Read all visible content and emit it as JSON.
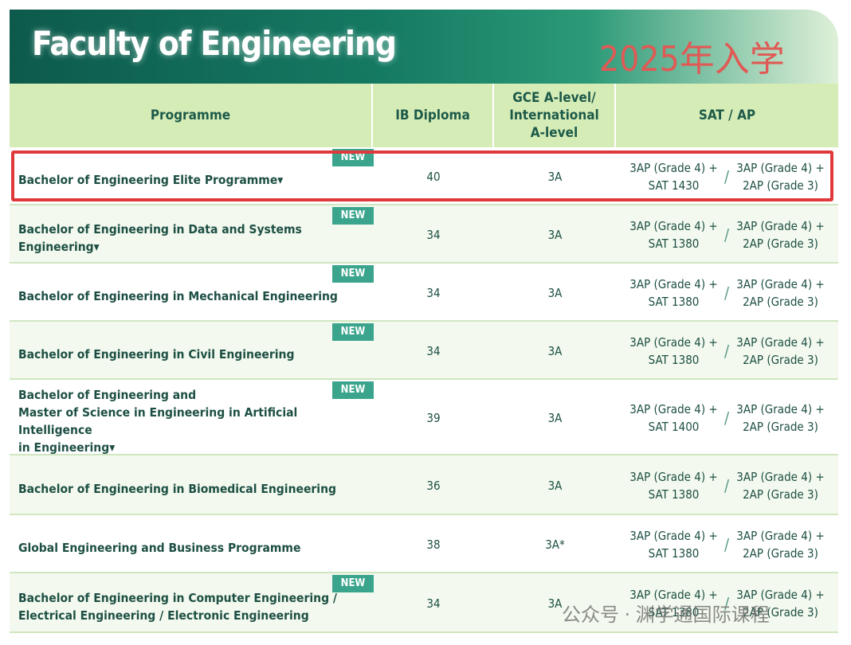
{
  "header": {
    "title": "Faculty of Engineering",
    "intake": "2025年入学"
  },
  "table": {
    "columns": [
      [
        "Programme"
      ],
      [
        "IB Diploma"
      ],
      [
        "GCE A-level/",
        "International",
        "A-level"
      ],
      [
        "SAT / AP"
      ]
    ],
    "rows": [
      {
        "programme": [
          "Bachelor of Engineering Elite Programme▾"
        ],
        "badge": "NEW",
        "ib": "40",
        "gce": "3A",
        "sat": [
          "3AP (Grade 4) +",
          "SAT 1430"
        ],
        "ap": [
          "3AP (Grade 4) +",
          "2AP (Grade 3)"
        ]
      },
      {
        "programme": [
          "Bachelor of Engineering in Data and Systems Engineering▾"
        ],
        "badge": "NEW",
        "ib": "34",
        "gce": "3A",
        "sat": [
          "3AP (Grade 4) +",
          "SAT 1380"
        ],
        "ap": [
          "3AP (Grade 4) +",
          "2AP (Grade 3)"
        ]
      },
      {
        "programme": [
          "Bachelor of Engineering in Mechanical Engineering"
        ],
        "badge": "NEW",
        "ib": "34",
        "gce": "3A",
        "sat": [
          "3AP (Grade 4) +",
          "SAT 1380"
        ],
        "ap": [
          "3AP (Grade 4) +",
          "2AP (Grade 3)"
        ]
      },
      {
        "programme": [
          "Bachelor of Engineering in Civil Engineering"
        ],
        "badge": "NEW",
        "ib": "34",
        "gce": "3A",
        "sat": [
          "3AP (Grade 4) +",
          "SAT 1380"
        ],
        "ap": [
          "3AP (Grade 4) +",
          "2AP (Grade 3)"
        ]
      },
      {
        "programme": [
          "Bachelor of Engineering and",
          "Master of Science in Engineering in Artificial Intelligence",
          "in Engineering▾"
        ],
        "badge": "NEW",
        "ib": "39",
        "gce": "3A",
        "sat": [
          "3AP (Grade 4) +",
          "SAT 1400"
        ],
        "ap": [
          "3AP (Grade 4) +",
          "2AP (Grade 3)"
        ]
      },
      {
        "programme": [
          "Bachelor of Engineering in Biomedical Engineering"
        ],
        "ib": "36",
        "gce": "3A",
        "sat": [
          "3AP (Grade 4) +",
          "SAT 1380"
        ],
        "ap": [
          "3AP (Grade 4) +",
          "2AP (Grade 3)"
        ]
      },
      {
        "programme": [
          "Global Engineering and Business Programme"
        ],
        "ib": "38",
        "gce": "3A*",
        "sat": [
          "3AP (Grade 4) +",
          "SAT 1380"
        ],
        "ap": [
          "3AP (Grade 4) +",
          "2AP (Grade 3)"
        ]
      },
      {
        "programme": [
          "Bachelor of Engineering in Computer Engineering /",
          "Electrical Engineering / Electronic Engineering"
        ],
        "badge": "NEW",
        "ib": "34",
        "gce": "3A",
        "sat": [
          "3AP (Grade 4) +",
          "SAT 1380"
        ],
        "ap": [
          "3AP (Grade 4) +",
          "2AP (Grade 3)"
        ]
      }
    ]
  },
  "watermark": "公众号 · 渊学通国际课程"
}
